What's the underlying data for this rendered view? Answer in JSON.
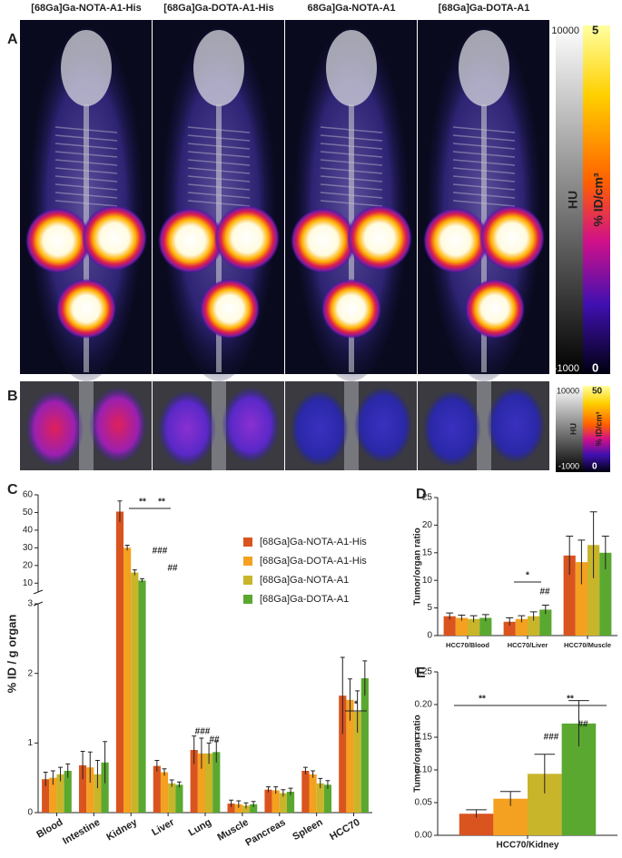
{
  "figure": {
    "panel_labels": [
      "A",
      "B",
      "C",
      "D",
      "E"
    ],
    "image_titles": [
      "[68Ga]Ga-NOTA-A1-His",
      "[68Ga]Ga-DOTA-A1-His",
      "68Ga]Ga-NOTA-A1",
      "[68Ga]Ga-DOTA-A1"
    ],
    "colorbars": [
      {
        "hu_max": "10000",
        "hu_min": "-1000",
        "hu_label": "HU",
        "pet_max": "5",
        "pet_min": "0",
        "pet_label": "% ID/cm³"
      },
      {
        "hu_max": "10000",
        "hu_min": "-1000",
        "hu_label": "HU",
        "pet_max": "50",
        "pet_min": "0",
        "pet_label": "% ID/cm³"
      }
    ]
  },
  "chart_data": [
    {
      "type": "bar",
      "ylabel": "% ID / g organ",
      "categories": [
        "Blood",
        "Intestine",
        "Kidney",
        "Liver",
        "Lung",
        "Muscle",
        "Pancreas",
        "Spleen",
        "HCC70"
      ],
      "series": [
        {
          "name": "[68Ga]Ga-NOTA-A1-His",
          "color": "#d9541e",
          "values": [
            0.48,
            0.68,
            50.5,
            0.67,
            0.9,
            0.13,
            0.33,
            0.6,
            1.68
          ],
          "errors": [
            0.1,
            0.2,
            6,
            0.08,
            0.2,
            0.05,
            0.04,
            0.05,
            0.55
          ]
        },
        {
          "name": "[68Ga]Ga-DOTA-A1-His",
          "color": "#f4a020",
          "values": [
            0.5,
            0.65,
            30,
            0.58,
            0.85,
            0.12,
            0.32,
            0.55,
            1.62
          ],
          "errors": [
            0.1,
            0.22,
            1.5,
            0.05,
            0.22,
            0.05,
            0.05,
            0.05,
            0.3
          ]
        },
        {
          "name": "[68Ga]Ga-NOTA-A1",
          "color": "#c9b52a",
          "values": [
            0.55,
            0.55,
            16,
            0.42,
            0.85,
            0.1,
            0.28,
            0.42,
            1.45
          ],
          "errors": [
            0.1,
            0.2,
            1.5,
            0.05,
            0.15,
            0.04,
            0.05,
            0.07,
            0.3
          ]
        },
        {
          "name": "[68Ga]Ga-DOTA-A1",
          "color": "#5aa830",
          "values": [
            0.6,
            0.72,
            11.5,
            0.4,
            0.87,
            0.12,
            0.3,
            0.4,
            1.93
          ],
          "errors": [
            0.1,
            0.3,
            1,
            0.04,
            0.15,
            0.04,
            0.05,
            0.06,
            0.25
          ]
        }
      ],
      "ylim": [
        0,
        60
      ],
      "axis_break": [
        3,
        5
      ],
      "yticks": [
        0,
        1,
        2,
        3,
        10,
        20,
        30,
        40,
        50,
        60
      ],
      "annotations": [
        "**",
        "**",
        "###",
        "##",
        "###",
        "##",
        "*"
      ]
    },
    {
      "type": "bar",
      "ylabel": "Tumor/organ ratio",
      "categories": [
        "HCC70/Blood",
        "HCC70/Liver",
        "HCC70/Muscle"
      ],
      "series": [
        {
          "color": "#d9541e",
          "values": [
            3.5,
            2.5,
            14.5
          ],
          "errors": [
            0.6,
            0.7,
            3.5
          ]
        },
        {
          "color": "#f4a020",
          "values": [
            3.2,
            3.0,
            13.3
          ],
          "errors": [
            0.5,
            0.6,
            4
          ]
        },
        {
          "color": "#c9b52a",
          "values": [
            3.0,
            3.5,
            16.4
          ],
          "errors": [
            0.6,
            0.8,
            6
          ]
        },
        {
          "color": "#5aa830",
          "values": [
            3.2,
            4.7,
            15.0
          ],
          "errors": [
            0.6,
            0.8,
            3
          ]
        }
      ],
      "ylim": [
        0,
        25
      ],
      "yticks": [
        0,
        5,
        10,
        15,
        20,
        25
      ],
      "annotations": [
        "*",
        "##"
      ]
    },
    {
      "type": "bar",
      "ylabel": "Tumor/organ ratio",
      "categories": [
        "HCC70/Kidney"
      ],
      "series": [
        {
          "color": "#d9541e",
          "values": [
            0.033
          ],
          "errors": [
            0.006
          ]
        },
        {
          "color": "#f4a020",
          "values": [
            0.056
          ],
          "errors": [
            0.011
          ]
        },
        {
          "color": "#c9b52a",
          "values": [
            0.094
          ],
          "errors": [
            0.03
          ]
        },
        {
          "color": "#5aa830",
          "values": [
            0.171
          ],
          "errors": [
            0.035
          ]
        }
      ],
      "ylim": [
        0,
        0.25
      ],
      "yticks": [
        {
          "value": 0,
          "label": "0.00"
        },
        0.05,
        {
          "value": 0.1,
          "label": "0.10"
        },
        0.15,
        {
          "value": 0.2,
          "label": "0.20"
        },
        0.25
      ],
      "annotations": [
        "**",
        "**",
        "###",
        "##"
      ]
    }
  ]
}
